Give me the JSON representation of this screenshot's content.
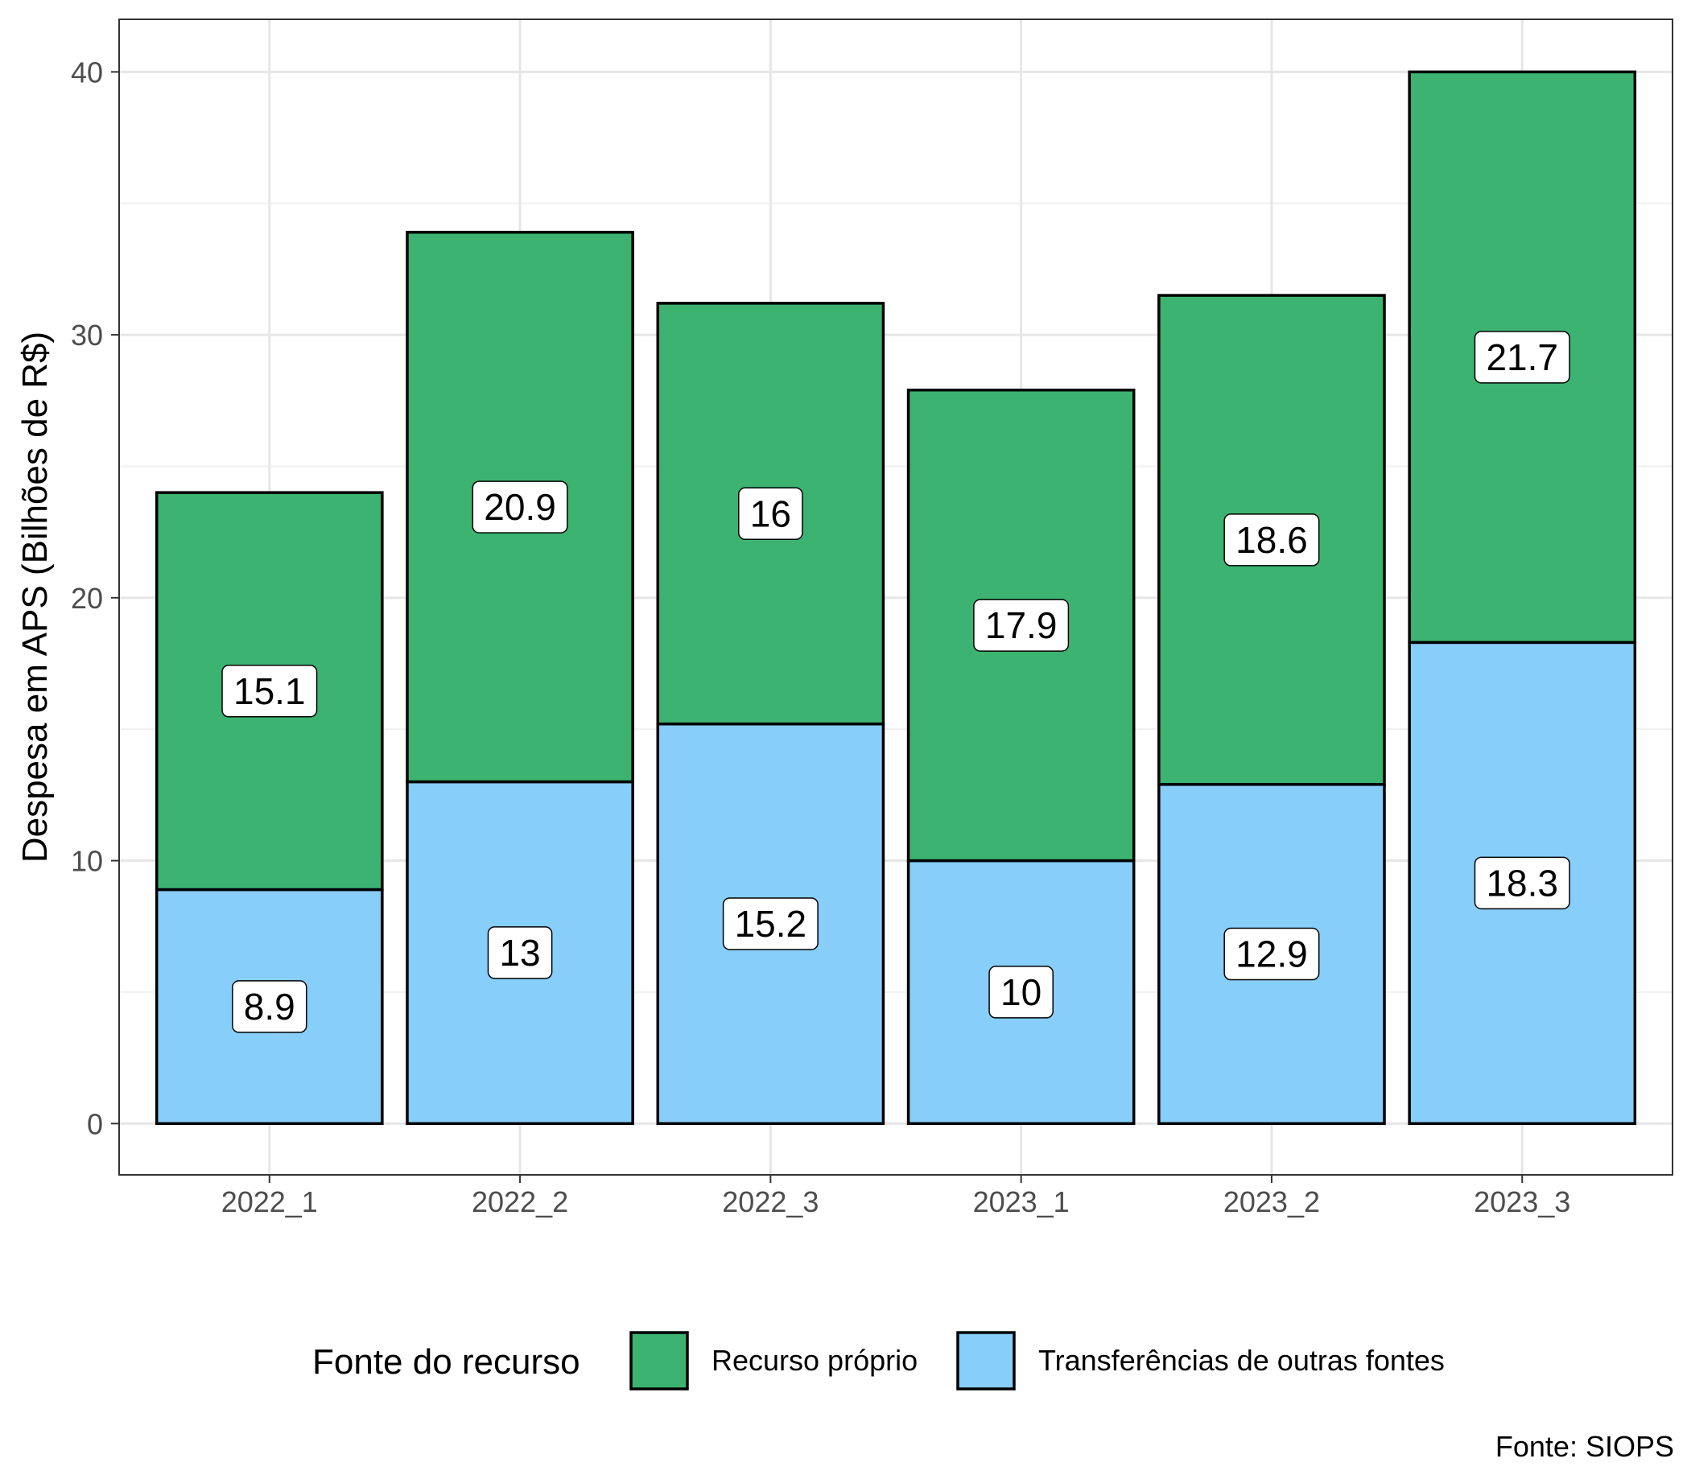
{
  "chart_data": {
    "type": "bar",
    "stacked": true,
    "categories": [
      "2022_1",
      "2022_2",
      "2022_3",
      "2023_1",
      "2023_2",
      "2023_3"
    ],
    "series": [
      {
        "name": "Transferências de outras fontes",
        "color": "#87CEFA",
        "values": [
          8.9,
          13,
          15.2,
          10,
          12.9,
          18.3
        ]
      },
      {
        "name": "Recurso próprio",
        "color": "#3CB371",
        "values": [
          15.1,
          20.9,
          16,
          17.9,
          18.6,
          21.7
        ]
      }
    ],
    "ylabel": "Despesa em APS (Bilhões de R$)",
    "xlabel": "",
    "ylim": [
      -1.95,
      42
    ],
    "yticks": [
      0,
      10,
      20,
      30,
      40
    ],
    "grid": true,
    "legend": {
      "title": "Fonte do recurso",
      "position": "bottom",
      "items": [
        "Recurso próprio",
        "Transferências de outras fontes"
      ]
    },
    "caption": "Fonte: SIOPS"
  }
}
